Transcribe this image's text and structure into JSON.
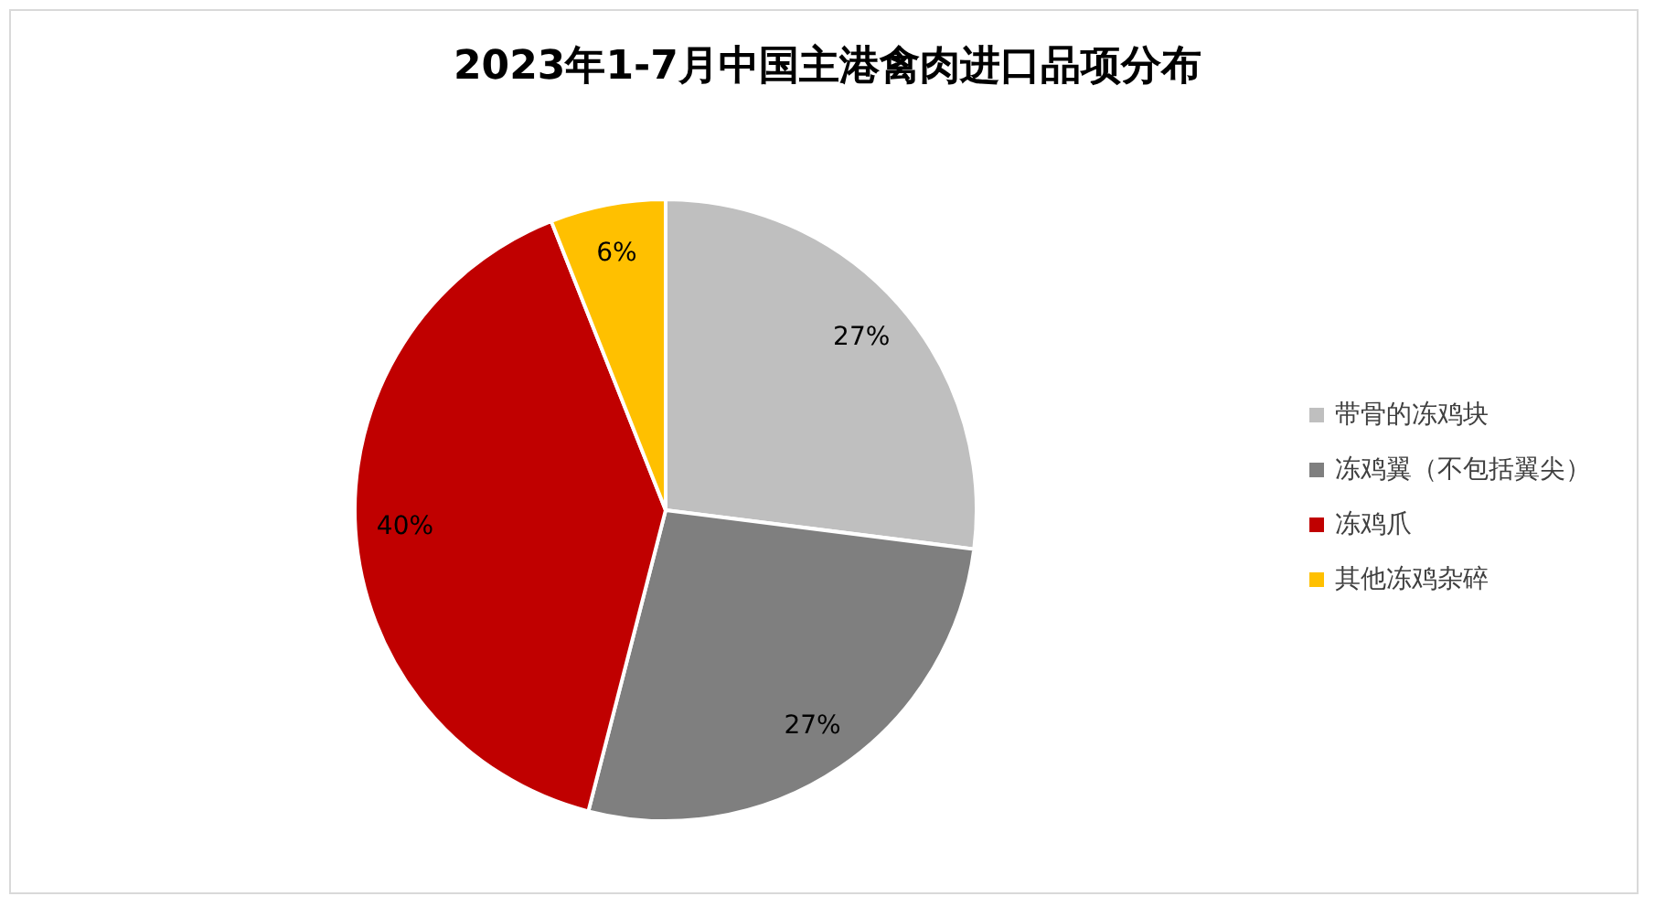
{
  "chart_data": {
    "type": "pie",
    "title": "2023年1-7月中国主港禽肉进口品项分布",
    "categories": [
      "带骨的冻鸡块",
      "冻鸡翼（不包括翼尖）",
      "冻鸡爪",
      "其他冻鸡杂碎"
    ],
    "values": [
      27,
      27,
      40,
      6
    ],
    "colors": [
      "#bfbfbf",
      "#7f7f7f",
      "#c00000",
      "#ffc000"
    ],
    "value_labels": [
      "27%",
      "27%",
      "40%",
      "6%"
    ],
    "legend": "right"
  }
}
